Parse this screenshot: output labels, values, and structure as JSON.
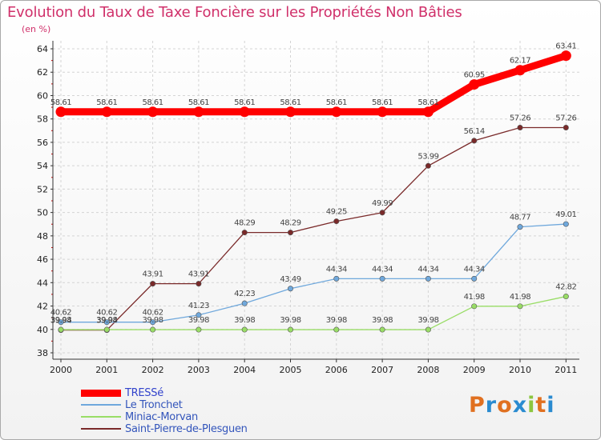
{
  "header": {
    "title": "Evolution du Taux de Taxe Foncière sur les Propriétés Non Bâties",
    "subtitle": "(en %)"
  },
  "chart_data": {
    "type": "line",
    "title": "Evolution du Taux de Taxe Foncière sur les Propriétés Non Bâties",
    "ylabel": "(en %)",
    "xlabel": "",
    "categories": [
      "2000",
      "2001",
      "2002",
      "2003",
      "2004",
      "2005",
      "2006",
      "2007",
      "2008",
      "2009",
      "2010",
      "2011"
    ],
    "ylim": [
      38,
      64
    ],
    "yticks": [
      38,
      40,
      42,
      44,
      46,
      48,
      50,
      52,
      54,
      56,
      58,
      60,
      62,
      64
    ],
    "grid": true,
    "series": [
      {
        "name": "TRESSé",
        "color": "#ff0000",
        "values": [
          58.61,
          58.61,
          58.61,
          58.61,
          58.61,
          58.61,
          58.61,
          58.61,
          58.61,
          60.95,
          62.17,
          63.41
        ],
        "labels": [
          "58.61",
          "58.61",
          "58.61",
          "58.61",
          "58.61",
          "58.61",
          "58.61",
          "58.61",
          "58.61",
          "60.95",
          "62.17",
          "63.41"
        ]
      },
      {
        "name": "Le Tronchet",
        "color": "#6fa8dc",
        "values": [
          40.62,
          40.62,
          40.62,
          41.23,
          42.23,
          43.49,
          44.34,
          44.34,
          44.34,
          44.34,
          48.77,
          49.01
        ],
        "labels": [
          "40.62",
          "40.62",
          "40.62",
          "41.23",
          "42.23",
          "43.49",
          "44.34",
          "44.34",
          "44.34",
          "44.34",
          "48.77",
          "49.01"
        ]
      },
      {
        "name": "Miniac-Morvan",
        "color": "#99dd66",
        "values": [
          39.98,
          39.98,
          39.98,
          39.98,
          39.98,
          39.98,
          39.98,
          39.98,
          39.98,
          41.98,
          41.98,
          42.82
        ],
        "labels": [
          "39.98",
          "39.98",
          "39.98",
          "39.98",
          "39.98",
          "39.98",
          "39.98",
          "39.98",
          "39.98",
          "41.98",
          "41.98",
          "42.82"
        ]
      },
      {
        "name": "Saint-Pierre-de-Plesguen",
        "color": "#7a2a2a",
        "values": [
          39.94,
          39.94,
          43.91,
          43.91,
          48.29,
          48.29,
          49.25,
          49.99,
          53.99,
          56.14,
          57.26,
          57.26
        ],
        "labels": [
          "39.94",
          "39.94",
          "43.91",
          "43.91",
          "48.29",
          "48.29",
          "49.25",
          "49.99",
          "53.99",
          "56.14",
          "57.26",
          "57.26"
        ]
      }
    ]
  },
  "branding": {
    "logo_letters": [
      "P",
      "r",
      "o",
      "x",
      "i",
      "t",
      "i"
    ],
    "logo_colors": [
      "#e07020",
      "#2a8bd0",
      "#e07020",
      "#2a8bd0",
      "#8cc63f",
      "#e07020",
      "#2a8bd0"
    ]
  }
}
